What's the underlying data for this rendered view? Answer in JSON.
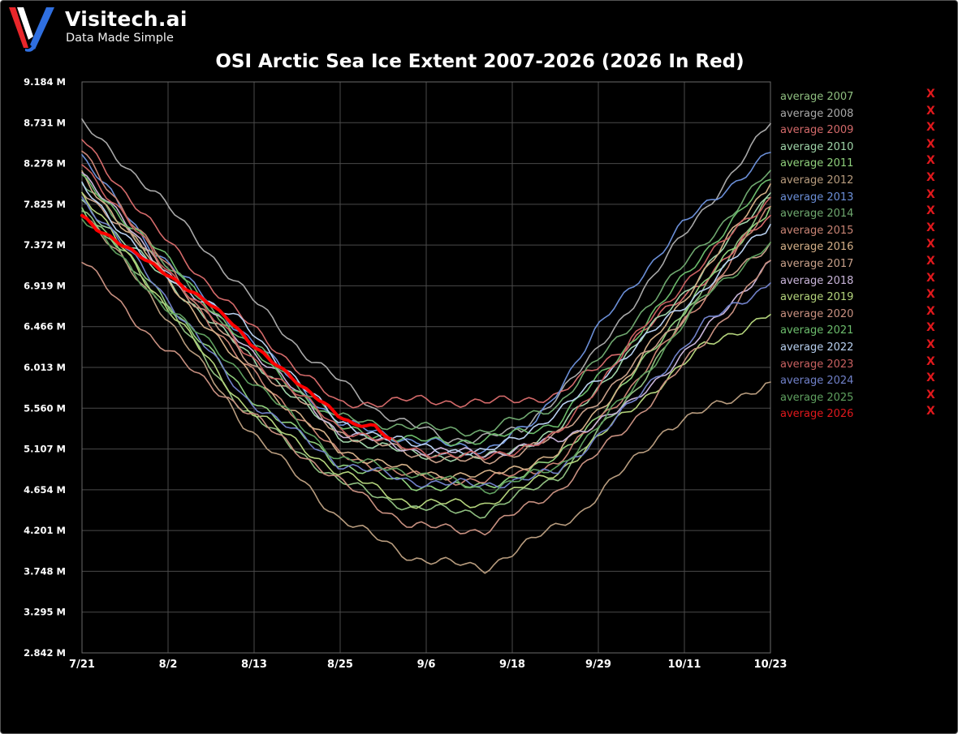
{
  "brand": {
    "name": "Visitech.ai",
    "tagline": "Data Made Simple"
  },
  "chart_data": {
    "type": "line",
    "title": "OSI Arctic Sea Ice Extent 2007-2026 (2026 In Red)",
    "xlabel": "",
    "ylabel": "",
    "x_ticks": [
      "7/21",
      "8/2",
      "8/13",
      "8/25",
      "9/6",
      "9/18",
      "9/29",
      "10/11",
      "10/23"
    ],
    "y_ticks": [
      "2.842 M",
      "3.295 M",
      "3.748 M",
      "4.201 M",
      "4.654 M",
      "5.107 M",
      "5.560 M",
      "6.013 M",
      "6.466 M",
      "6.919 M",
      "7.372 M",
      "7.825 M",
      "8.278 M",
      "8.731 M",
      "9.184 M"
    ],
    "ylim": [
      2.842,
      9.184
    ],
    "x_range_days": [
      0,
      94
    ],
    "grid": true,
    "legend_position": "right",
    "highlight_series": "average 2026",
    "series": [
      {
        "name": "average 2007",
        "color": "#8fbf80",
        "values": [
          [
            0,
            7.75
          ],
          [
            10,
            6.85
          ],
          [
            22,
            5.55
          ],
          [
            35,
            4.75
          ],
          [
            45,
            4.45
          ],
          [
            55,
            4.4
          ],
          [
            65,
            4.8
          ],
          [
            75,
            5.7
          ],
          [
            85,
            6.9
          ],
          [
            94,
            7.9
          ]
        ]
      },
      {
        "name": "average 2008",
        "color": "#a8a8a8",
        "values": [
          [
            0,
            8.72
          ],
          [
            10,
            7.95
          ],
          [
            20,
            7.05
          ],
          [
            30,
            6.2
          ],
          [
            40,
            5.55
          ],
          [
            50,
            5.2
          ],
          [
            60,
            5.3
          ],
          [
            70,
            6.15
          ],
          [
            80,
            7.25
          ],
          [
            94,
            8.72
          ]
        ]
      },
      {
        "name": "average 2009",
        "color": "#d46a6a",
        "values": [
          [
            0,
            8.55
          ],
          [
            10,
            7.55
          ],
          [
            22,
            6.55
          ],
          [
            35,
            5.6
          ],
          [
            45,
            5.65
          ],
          [
            55,
            5.62
          ],
          [
            65,
            5.7
          ],
          [
            75,
            6.3
          ],
          [
            85,
            7.0
          ],
          [
            94,
            7.7
          ]
        ]
      },
      {
        "name": "average 2010",
        "color": "#9fd4a8",
        "values": [
          [
            0,
            7.85
          ],
          [
            10,
            7.1
          ],
          [
            22,
            6.2
          ],
          [
            35,
            5.25
          ],
          [
            45,
            5.05
          ],
          [
            55,
            5.0
          ],
          [
            65,
            5.3
          ],
          [
            75,
            6.2
          ],
          [
            85,
            7.1
          ],
          [
            94,
            7.95
          ]
        ]
      },
      {
        "name": "average 2011",
        "color": "#8fd07c",
        "values": [
          [
            0,
            7.8
          ],
          [
            10,
            6.9
          ],
          [
            22,
            5.75
          ],
          [
            35,
            4.95
          ],
          [
            45,
            4.7
          ],
          [
            55,
            4.68
          ],
          [
            65,
            5.0
          ],
          [
            75,
            5.9
          ],
          [
            85,
            6.95
          ],
          [
            94,
            7.8
          ]
        ]
      },
      {
        "name": "average 2012",
        "color": "#b89c7e",
        "values": [
          [
            0,
            7.75
          ],
          [
            10,
            6.75
          ],
          [
            22,
            5.4
          ],
          [
            35,
            4.35
          ],
          [
            45,
            3.9
          ],
          [
            55,
            3.78
          ],
          [
            60,
            4.02
          ],
          [
            68,
            4.4
          ],
          [
            80,
            5.35
          ],
          [
            94,
            5.85
          ]
        ]
      },
      {
        "name": "average 2013",
        "color": "#6b8fd8",
        "values": [
          [
            0,
            8.35
          ],
          [
            10,
            7.3
          ],
          [
            22,
            6.4
          ],
          [
            35,
            5.4
          ],
          [
            45,
            5.2
          ],
          [
            55,
            5.1
          ],
          [
            62,
            5.4
          ],
          [
            70,
            6.4
          ],
          [
            82,
            7.6
          ],
          [
            94,
            8.4
          ]
        ]
      },
      {
        "name": "average 2014",
        "color": "#6fa86f",
        "values": [
          [
            0,
            8.05
          ],
          [
            10,
            7.25
          ],
          [
            22,
            6.35
          ],
          [
            35,
            5.45
          ],
          [
            45,
            5.35
          ],
          [
            55,
            5.3
          ],
          [
            65,
            5.6
          ],
          [
            75,
            6.5
          ],
          [
            85,
            7.4
          ],
          [
            94,
            8.2
          ]
        ]
      },
      {
        "name": "average 2015",
        "color": "#c98474",
        "values": [
          [
            0,
            8.4
          ],
          [
            10,
            7.3
          ],
          [
            22,
            6.05
          ],
          [
            35,
            5.05
          ],
          [
            45,
            4.8
          ],
          [
            55,
            4.75
          ],
          [
            65,
            4.95
          ],
          [
            75,
            5.8
          ],
          [
            85,
            6.8
          ],
          [
            94,
            7.8
          ]
        ]
      },
      {
        "name": "average 2016",
        "color": "#d4b088",
        "values": [
          [
            0,
            8.15
          ],
          [
            10,
            7.15
          ],
          [
            22,
            6.0
          ],
          [
            35,
            5.1
          ],
          [
            45,
            4.85
          ],
          [
            55,
            4.8
          ],
          [
            65,
            5.05
          ],
          [
            75,
            5.95
          ],
          [
            85,
            7.1
          ],
          [
            94,
            8.05
          ]
        ]
      },
      {
        "name": "average 2017",
        "color": "#c8a08a",
        "values": [
          [
            0,
            8.0
          ],
          [
            10,
            7.2
          ],
          [
            22,
            6.15
          ],
          [
            35,
            5.3
          ],
          [
            45,
            5.05
          ],
          [
            55,
            4.95
          ],
          [
            65,
            5.25
          ],
          [
            75,
            6.0
          ],
          [
            85,
            6.8
          ],
          [
            94,
            7.4
          ]
        ]
      },
      {
        "name": "average 2018",
        "color": "#c8b4d8",
        "values": [
          [
            0,
            8.2
          ],
          [
            10,
            7.2
          ],
          [
            22,
            6.3
          ],
          [
            35,
            5.3
          ],
          [
            45,
            5.1
          ],
          [
            55,
            5.05
          ],
          [
            65,
            5.2
          ],
          [
            75,
            5.6
          ],
          [
            85,
            6.4
          ],
          [
            94,
            7.2
          ]
        ]
      },
      {
        "name": "average 2019",
        "color": "#b4d47c",
        "values": [
          [
            0,
            7.95
          ],
          [
            10,
            6.85
          ],
          [
            22,
            5.6
          ],
          [
            35,
            4.85
          ],
          [
            45,
            4.5
          ],
          [
            55,
            4.5
          ],
          [
            65,
            4.85
          ],
          [
            75,
            5.55
          ],
          [
            85,
            6.25
          ],
          [
            94,
            6.6
          ]
        ]
      },
      {
        "name": "average 2020",
        "color": "#c89080",
        "values": [
          [
            0,
            7.2
          ],
          [
            10,
            6.3
          ],
          [
            22,
            5.55
          ],
          [
            35,
            4.75
          ],
          [
            45,
            4.25
          ],
          [
            55,
            4.2
          ],
          [
            65,
            4.65
          ],
          [
            75,
            5.4
          ],
          [
            85,
            6.3
          ],
          [
            94,
            7.2
          ]
        ]
      },
      {
        "name": "average 2021",
        "color": "#6cbc6c",
        "values": [
          [
            0,
            8.1
          ],
          [
            10,
            7.35
          ],
          [
            22,
            6.3
          ],
          [
            35,
            5.35
          ],
          [
            45,
            5.2
          ],
          [
            55,
            5.2
          ],
          [
            65,
            5.4
          ],
          [
            75,
            6.3
          ],
          [
            85,
            7.3
          ],
          [
            94,
            8.1
          ]
        ]
      },
      {
        "name": "average 2022",
        "color": "#b8d0f0",
        "values": [
          [
            0,
            8.05
          ],
          [
            10,
            7.1
          ],
          [
            22,
            6.5
          ],
          [
            35,
            5.4
          ],
          [
            45,
            5.15
          ],
          [
            55,
            5.05
          ],
          [
            65,
            5.5
          ],
          [
            75,
            6.2
          ],
          [
            85,
            6.9
          ],
          [
            94,
            7.6
          ]
        ]
      },
      {
        "name": "average 2023",
        "color": "#c86060",
        "values": [
          [
            0,
            8.3
          ],
          [
            10,
            7.25
          ],
          [
            22,
            6.2
          ],
          [
            35,
            5.35
          ],
          [
            45,
            5.1
          ],
          [
            55,
            5.0
          ],
          [
            65,
            5.25
          ],
          [
            75,
            6.3
          ],
          [
            85,
            7.2
          ],
          [
            94,
            7.9
          ]
        ]
      },
      {
        "name": "average 2024",
        "color": "#7080c8",
        "values": [
          [
            0,
            7.9
          ],
          [
            10,
            6.95
          ],
          [
            22,
            5.7
          ],
          [
            35,
            4.95
          ],
          [
            45,
            4.75
          ],
          [
            55,
            4.7
          ],
          [
            65,
            4.85
          ],
          [
            75,
            5.6
          ],
          [
            85,
            6.5
          ],
          [
            94,
            6.95
          ]
        ]
      },
      {
        "name": "average 2025",
        "color": "#5fa05f",
        "values": [
          [
            0,
            7.7
          ],
          [
            10,
            6.8
          ],
          [
            22,
            5.95
          ],
          [
            35,
            5.0
          ],
          [
            45,
            4.85
          ],
          [
            55,
            4.65
          ],
          [
            65,
            4.9
          ],
          [
            75,
            5.75
          ],
          [
            85,
            6.8
          ],
          [
            94,
            7.4
          ]
        ]
      },
      {
        "name": "average 2026",
        "color": "#ff0000",
        "values": [
          [
            0,
            7.7
          ],
          [
            2,
            7.55
          ],
          [
            5,
            7.4
          ],
          [
            8,
            7.25
          ],
          [
            11,
            7.08
          ],
          [
            14,
            6.9
          ],
          [
            17,
            6.75
          ],
          [
            20,
            6.55
          ],
          [
            23,
            6.28
          ],
          [
            26,
            6.08
          ],
          [
            28,
            5.95
          ],
          [
            30,
            5.8
          ],
          [
            33,
            5.62
          ],
          [
            35,
            5.48
          ],
          [
            37,
            5.38
          ],
          [
            40,
            5.36
          ],
          [
            42,
            5.22
          ]
        ]
      }
    ]
  },
  "legend": {
    "remove_symbol": "X",
    "items": [
      {
        "label": "average 2007",
        "color": "#8fbf80"
      },
      {
        "label": "average 2008",
        "color": "#a8a8a8"
      },
      {
        "label": "average 2009",
        "color": "#d46a6a"
      },
      {
        "label": "average 2010",
        "color": "#9fd4a8"
      },
      {
        "label": "average 2011",
        "color": "#8fd07c"
      },
      {
        "label": "average 2012",
        "color": "#b89c7e"
      },
      {
        "label": "average 2013",
        "color": "#6b8fd8"
      },
      {
        "label": "average 2014",
        "color": "#6fa86f"
      },
      {
        "label": "average 2015",
        "color": "#c98474"
      },
      {
        "label": "average 2016",
        "color": "#d4b088"
      },
      {
        "label": "average 2017",
        "color": "#c8a08a"
      },
      {
        "label": "average 2018",
        "color": "#c8b4d8"
      },
      {
        "label": "average 2019",
        "color": "#b4d47c"
      },
      {
        "label": "average 2020",
        "color": "#c89080"
      },
      {
        "label": "average 2021",
        "color": "#6cbc6c"
      },
      {
        "label": "average 2022",
        "color": "#b8d0f0"
      },
      {
        "label": "average 2023",
        "color": "#c86060"
      },
      {
        "label": "average 2024",
        "color": "#7080c8"
      },
      {
        "label": "average 2025",
        "color": "#5fa05f"
      },
      {
        "label": "average 2026",
        "color": "#e0181c"
      }
    ]
  }
}
